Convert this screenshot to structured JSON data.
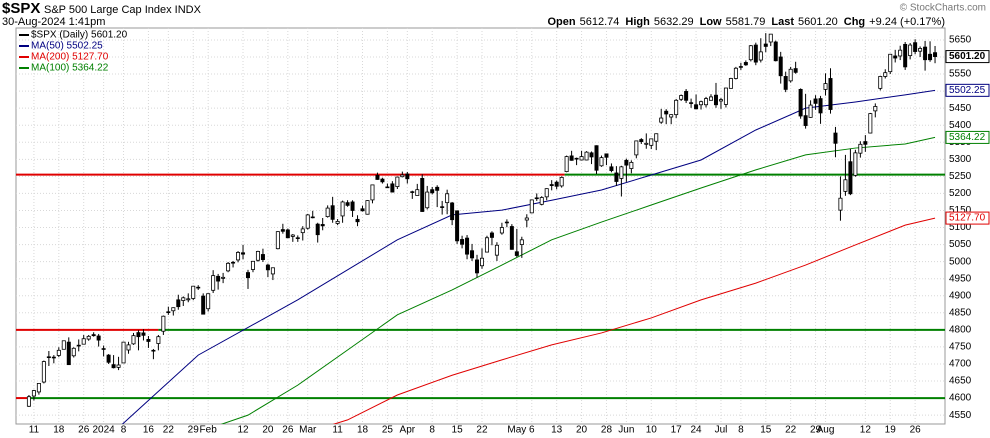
{
  "chart_data": {
    "type": "candlestick",
    "title": "$SPX",
    "subtitle": "S&P 500 Large Cap Index INDX",
    "date": "30-Aug-2024 1:41pm",
    "quote": [
      {
        "label": "Open",
        "value": "5612.74"
      },
      {
        "label": "High",
        "value": "5632.29"
      },
      {
        "label": "Low",
        "value": "5581.79"
      },
      {
        "label": "Last",
        "value": "5601.20"
      },
      {
        "label": "Chg",
        "value": "+9.24 (+0.17%)"
      }
    ],
    "credit": "© StockCharts.com",
    "price_legend": "$SPX (Daily) 5601.20",
    "up_color": "#ffffff",
    "down_color": "#000000",
    "ohlc": [
      [
        4576,
        4609,
        4574,
        4604
      ],
      [
        4606,
        4624,
        4593,
        4622
      ],
      [
        4618,
        4644,
        4610,
        4643
      ],
      [
        4647,
        4710,
        4643,
        4707
      ],
      [
        4721,
        4738,
        4694,
        4719
      ],
      [
        4720,
        4726,
        4702,
        4719
      ],
      [
        4725,
        4749,
        4720,
        4740
      ],
      [
        4743,
        4768,
        4743,
        4768
      ],
      [
        4764,
        4778,
        4697,
        4698
      ],
      [
        4724,
        4749,
        4719,
        4746
      ],
      [
        4753,
        4772,
        4737,
        4755
      ],
      [
        4758,
        4785,
        4758,
        4774
      ],
      [
        4773,
        4785,
        4768,
        4781
      ],
      [
        4786,
        4793,
        4780,
        4783
      ],
      [
        4782,
        4788,
        4751,
        4770
      ],
      [
        4745,
        4754,
        4722,
        4743
      ],
      [
        4726,
        4729,
        4700,
        4705
      ],
      [
        4698,
        4726,
        4687,
        4689
      ],
      [
        4690,
        4721,
        4682,
        4697
      ],
      [
        4703,
        4765,
        4703,
        4764
      ],
      [
        4741,
        4765,
        4730,
        4756
      ],
      [
        4759,
        4791,
        4756,
        4783
      ],
      [
        4792,
        4799,
        4740,
        4780
      ],
      [
        4791,
        4802,
        4769,
        4784
      ],
      [
        4772,
        4782,
        4747,
        4766
      ],
      [
        4740,
        4744,
        4714,
        4739
      ],
      [
        4760,
        4785,
        4740,
        4780
      ],
      [
        4796,
        4842,
        4785,
        4840
      ],
      [
        4853,
        4868,
        4844,
        4851
      ],
      [
        4856,
        4866,
        4842,
        4865
      ],
      [
        4888,
        4903,
        4859,
        4868
      ],
      [
        4886,
        4898,
        4870,
        4894
      ],
      [
        4888,
        4907,
        4881,
        4891
      ],
      [
        4892,
        4929,
        4887,
        4928
      ],
      [
        4925,
        4931,
        4917,
        4925
      ],
      [
        4899,
        4907,
        4845,
        4846
      ],
      [
        4862,
        4907,
        4854,
        4906
      ],
      [
        4916,
        4975,
        4908,
        4959
      ],
      [
        4957,
        4964,
        4918,
        4943
      ],
      [
        4951,
        4967,
        4937,
        4954
      ],
      [
        4973,
        4999,
        4969,
        4995
      ],
      [
        4997,
        5002,
        4983,
        4998
      ],
      [
        5005,
        5031,
        4998,
        5027
      ],
      [
        5026,
        5049,
        5007,
        5022
      ],
      [
        4968,
        4976,
        4920,
        4953
      ],
      [
        4977,
        5002,
        4969,
        5001
      ],
      [
        5004,
        5032,
        5000,
        5030
      ],
      [
        5021,
        5038,
        4999,
        5006
      ],
      [
        4990,
        4994,
        4955,
        4976
      ],
      [
        4964,
        4983,
        4946,
        4982
      ],
      [
        5038,
        5089,
        5036,
        5088
      ],
      [
        5094,
        5111,
        5082,
        5089
      ],
      [
        5093,
        5097,
        5069,
        5070
      ],
      [
        5074,
        5081,
        5058,
        5078
      ],
      [
        5068,
        5077,
        5058,
        5070
      ],
      [
        5085,
        5104,
        5062,
        5096
      ],
      [
        5098,
        5140,
        5094,
        5137
      ],
      [
        5131,
        5149,
        5127,
        5131
      ],
      [
        5110,
        5114,
        5056,
        5079
      ],
      [
        5109,
        5128,
        5092,
        5105
      ],
      [
        5132,
        5165,
        5129,
        5157
      ],
      [
        5164,
        5190,
        5114,
        5124
      ],
      [
        5112,
        5125,
        5107,
        5118
      ],
      [
        5134,
        5179,
        5114,
        5175
      ],
      [
        5173,
        5180,
        5161,
        5165
      ],
      [
        5175,
        5180,
        5131,
        5150
      ],
      [
        5124,
        5136,
        5104,
        5117
      ],
      [
        5155,
        5164,
        5147,
        5149
      ],
      [
        5139,
        5180,
        5138,
        5179
      ],
      [
        5181,
        5226,
        5171,
        5225
      ],
      [
        5253,
        5261,
        5240,
        5241
      ],
      [
        5242,
        5246,
        5229,
        5234
      ],
      [
        5219,
        5229,
        5216,
        5218
      ],
      [
        5228,
        5236,
        5203,
        5204
      ],
      [
        5220,
        5249,
        5213,
        5248
      ],
      [
        5249,
        5264,
        5247,
        5254
      ],
      [
        5257,
        5263,
        5229,
        5243
      ],
      [
        5204,
        5208,
        5184,
        5205
      ],
      [
        5194,
        5228,
        5194,
        5211
      ],
      [
        5244,
        5256,
        5146,
        5147
      ],
      [
        5158,
        5222,
        5153,
        5204
      ],
      [
        5211,
        5219,
        5197,
        5202
      ],
      [
        5218,
        5224,
        5160,
        5209
      ],
      [
        5161,
        5178,
        5138,
        5161
      ],
      [
        5173,
        5211,
        5139,
        5199
      ],
      [
        5172,
        5175,
        5107,
        5123
      ],
      [
        5149,
        5150,
        5052,
        5061
      ],
      [
        5065,
        5076,
        5039,
        5051
      ],
      [
        5069,
        5078,
        5007,
        5022
      ],
      [
        5032,
        5052,
        5002,
        5011
      ],
      [
        5005,
        5020,
        4953,
        4967
      ],
      [
        4988,
        5039,
        4979,
        5010
      ],
      [
        5028,
        5076,
        5027,
        5070
      ],
      [
        5084,
        5089,
        5048,
        5071
      ],
      [
        5019,
        5057,
        5002,
        5048
      ],
      [
        5084,
        5114,
        5079,
        5100
      ],
      [
        5114,
        5124,
        5101,
        5116
      ],
      [
        5103,
        5110,
        5035,
        5036
      ],
      [
        5029,
        5096,
        5013,
        5018
      ],
      [
        5050,
        5073,
        5011,
        5064
      ],
      [
        5122,
        5139,
        5101,
        5128
      ],
      [
        5143,
        5181,
        5142,
        5181
      ],
      [
        5187,
        5200,
        5178,
        5187
      ],
      [
        5168,
        5192,
        5165,
        5188
      ],
      [
        5190,
        5215,
        5180,
        5214
      ],
      [
        5226,
        5239,
        5209,
        5223
      ],
      [
        5233,
        5238,
        5212,
        5221
      ],
      [
        5222,
        5250,
        5217,
        5247
      ],
      [
        5264,
        5311,
        5262,
        5308
      ],
      [
        5310,
        5325,
        5296,
        5297
      ],
      [
        5303,
        5305,
        5283,
        5303
      ],
      [
        5298,
        5325,
        5297,
        5308
      ],
      [
        5298,
        5324,
        5297,
        5321
      ],
      [
        5319,
        5323,
        5286,
        5307
      ],
      [
        5340,
        5341,
        5257,
        5268
      ],
      [
        5281,
        5311,
        5278,
        5305
      ],
      [
        5316,
        5316,
        5283,
        5306
      ],
      [
        5278,
        5288,
        5262,
        5267
      ],
      [
        5260,
        5280,
        5222,
        5235
      ],
      [
        5244,
        5281,
        5191,
        5278
      ],
      [
        5297,
        5302,
        5234,
        5283
      ],
      [
        5273,
        5297,
        5259,
        5291
      ],
      [
        5313,
        5355,
        5303,
        5354
      ],
      [
        5358,
        5362,
        5345,
        5352
      ],
      [
        5344,
        5376,
        5331,
        5347
      ],
      [
        5341,
        5361,
        5330,
        5360
      ],
      [
        5353,
        5376,
        5327,
        5375
      ],
      [
        5409,
        5448,
        5404,
        5421
      ],
      [
        5441,
        5447,
        5403,
        5433
      ],
      [
        5424,
        5432,
        5403,
        5431
      ],
      [
        5431,
        5477,
        5421,
        5473
      ],
      [
        5476,
        5490,
        5471,
        5487
      ],
      [
        5499,
        5506,
        5465,
        5473
      ],
      [
        5466,
        5478,
        5451,
        5465
      ],
      [
        5460,
        5490,
        5447,
        5448
      ],
      [
        5460,
        5472,
        5446,
        5469
      ],
      [
        5460,
        5483,
        5452,
        5478
      ],
      [
        5473,
        5491,
        5473,
        5483
      ],
      [
        5488,
        5524,
        5451,
        5460
      ],
      [
        5471,
        5480,
        5448,
        5475
      ],
      [
        5461,
        5510,
        5452,
        5509
      ],
      [
        5508,
        5539,
        5508,
        5537
      ],
      [
        5537,
        5571,
        5534,
        5567
      ],
      [
        5572,
        5583,
        5562,
        5572
      ],
      [
        5584,
        5590,
        5574,
        5577
      ],
      [
        5592,
        5635,
        5587,
        5633
      ],
      [
        5635,
        5642,
        5576,
        5585
      ],
      [
        5591,
        5655,
        5584,
        5615
      ],
      [
        5638,
        5670,
        5614,
        5631
      ],
      [
        5644,
        5667,
        5632,
        5667
      ],
      [
        5644,
        5648,
        5587,
        5589
      ],
      [
        5600,
        5615,
        5522,
        5545
      ],
      [
        5543,
        5557,
        5497,
        5505
      ],
      [
        5530,
        5571,
        5525,
        5564
      ],
      [
        5566,
        5586,
        5551,
        5555
      ],
      [
        5505,
        5508,
        5419,
        5427
      ],
      [
        5428,
        5492,
        5390,
        5399
      ],
      [
        5423,
        5473,
        5422,
        5459
      ],
      [
        5477,
        5488,
        5445,
        5464
      ],
      [
        5478,
        5486,
        5404,
        5436
      ],
      [
        5505,
        5552,
        5487,
        5522
      ],
      [
        5537,
        5567,
        5434,
        5446
      ],
      [
        5377,
        5395,
        5306,
        5347
      ],
      [
        5151,
        5250,
        5120,
        5186
      ],
      [
        5206,
        5313,
        5193,
        5240
      ],
      [
        5293,
        5331,
        5195,
        5199
      ],
      [
        5253,
        5328,
        5249,
        5319
      ],
      [
        5318,
        5353,
        5305,
        5344
      ],
      [
        5352,
        5371,
        5322,
        5344
      ],
      [
        5377,
        5436,
        5376,
        5434
      ],
      [
        5442,
        5464,
        5423,
        5455
      ],
      [
        5508,
        5545,
        5502,
        5543
      ],
      [
        5543,
        5564,
        5537,
        5554
      ],
      [
        5557,
        5609,
        5550,
        5608
      ],
      [
        5603,
        5621,
        5584,
        5597
      ],
      [
        5603,
        5633,
        5591,
        5620
      ],
      [
        5637,
        5644,
        5562,
        5571
      ],
      [
        5604,
        5641,
        5593,
        5635
      ],
      [
        5642,
        5652,
        5608,
        5616
      ],
      [
        5617,
        5631,
        5600,
        5625
      ],
      [
        5629,
        5647,
        5560,
        5592
      ],
      [
        5608,
        5646,
        5586,
        5592
      ],
      [
        5612.74,
        5632.29,
        5581.79,
        5601.2
      ]
    ],
    "series": [
      {
        "legend": "MA(50) 5502.25",
        "color": "#000080",
        "x": [
          17,
          34,
          54,
          74,
          85,
          95,
          105,
          115,
          125,
          135,
          146,
          156,
          166,
          176,
          182
        ],
        "values": [
          4500,
          4726,
          4888,
          5064,
          5137,
          5151,
          5180,
          5210,
          5254,
          5298,
          5386,
          5450,
          5468,
          5489,
          5502.25
        ]
      },
      {
        "legend": "MA(200) 5127.70",
        "color": "#e00000",
        "x": [
          56,
          64,
          74,
          85,
          95,
          105,
          115,
          125,
          135,
          146,
          156,
          166,
          176,
          182
        ],
        "values": [
          4500,
          4536,
          4609,
          4667,
          4712,
          4756,
          4791,
          4835,
          4888,
          4937,
          4990,
          5049,
          5107,
          5127.7
        ]
      },
      {
        "legend": "MA(100) 5364.22",
        "color": "#008000",
        "x": [
          34,
          44,
          54,
          64,
          74,
          85,
          95,
          105,
          115,
          125,
          135,
          146,
          156,
          166,
          176,
          182
        ],
        "values": [
          4500,
          4550,
          4638,
          4741,
          4844,
          4917,
          4990,
          5064,
          5116,
          5166,
          5216,
          5269,
          5313,
          5333,
          5345,
          5364.22
        ]
      }
    ],
    "levels": [
      {
        "value": 5255,
        "split": 107.6,
        "left_color": "#e00000",
        "right_color": "#008000"
      },
      {
        "value": 4800,
        "split": 26,
        "left_color": "#e00000",
        "right_color": "#008000"
      },
      {
        "value": 4600,
        "split": 0,
        "left_color": "#e00000",
        "right_color": "#008000"
      }
    ],
    "price_tags": [
      {
        "value": 5601.2,
        "label": "5601.20",
        "color": "#000000"
      },
      {
        "value": 5502.25,
        "label": "5502.25",
        "color": "#000080"
      },
      {
        "value": 5364.22,
        "label": "5364.22",
        "color": "#008000"
      },
      {
        "value": 5127.7,
        "label": "5127.70",
        "color": "#e00000"
      }
    ],
    "xlim": [
      -2.6,
      184
    ],
    "ylim": [
      4524,
      5685
    ],
    "xticks": [
      {
        "value": 1,
        "label": "11"
      },
      {
        "value": 6,
        "label": "18"
      },
      {
        "value": 11,
        "label": "26"
      },
      {
        "value": 15,
        "label": "2024"
      },
      {
        "value": 19,
        "label": "8"
      },
      {
        "value": 24,
        "label": "16"
      },
      {
        "value": 28,
        "label": "22"
      },
      {
        "value": 33,
        "label": "29"
      },
      {
        "value": 36,
        "label": "Feb"
      },
      {
        "value": 43,
        "label": "12"
      },
      {
        "value": 48,
        "label": "20"
      },
      {
        "value": 52,
        "label": "26"
      },
      {
        "value": 56,
        "label": "Mar"
      },
      {
        "value": 62,
        "label": "11"
      },
      {
        "value": 67,
        "label": "18"
      },
      {
        "value": 72,
        "label": "25"
      },
      {
        "value": 76,
        "label": "Apr"
      },
      {
        "value": 81,
        "label": "8"
      },
      {
        "value": 86,
        "label": "15"
      },
      {
        "value": 91,
        "label": "22"
      },
      {
        "value": 98,
        "label": "May"
      },
      {
        "value": 101,
        "label": "6"
      },
      {
        "value": 106,
        "label": "13"
      },
      {
        "value": 111,
        "label": "20"
      },
      {
        "value": 116,
        "label": "28"
      },
      {
        "value": 120,
        "label": "Jun"
      },
      {
        "value": 125,
        "label": "10"
      },
      {
        "value": 130,
        "label": "17"
      },
      {
        "value": 134,
        "label": "24"
      },
      {
        "value": 139,
        "label": "Jul"
      },
      {
        "value": 143,
        "label": "8"
      },
      {
        "value": 148,
        "label": "15"
      },
      {
        "value": 153,
        "label": "22"
      },
      {
        "value": 158,
        "label": "29"
      },
      {
        "value": 160,
        "label": "Aug"
      },
      {
        "value": 168,
        "label": "12"
      },
      {
        "value": 173,
        "label": "19"
      },
      {
        "value": 178,
        "label": "26"
      }
    ],
    "yticks": [
      4550,
      4600,
      4650,
      4700,
      4750,
      4800,
      4850,
      4900,
      4950,
      5000,
      5050,
      5100,
      5150,
      5200,
      5250,
      5300,
      5350,
      5400,
      5450,
      5500,
      5550,
      5600,
      5650
    ],
    "grid": true
  }
}
